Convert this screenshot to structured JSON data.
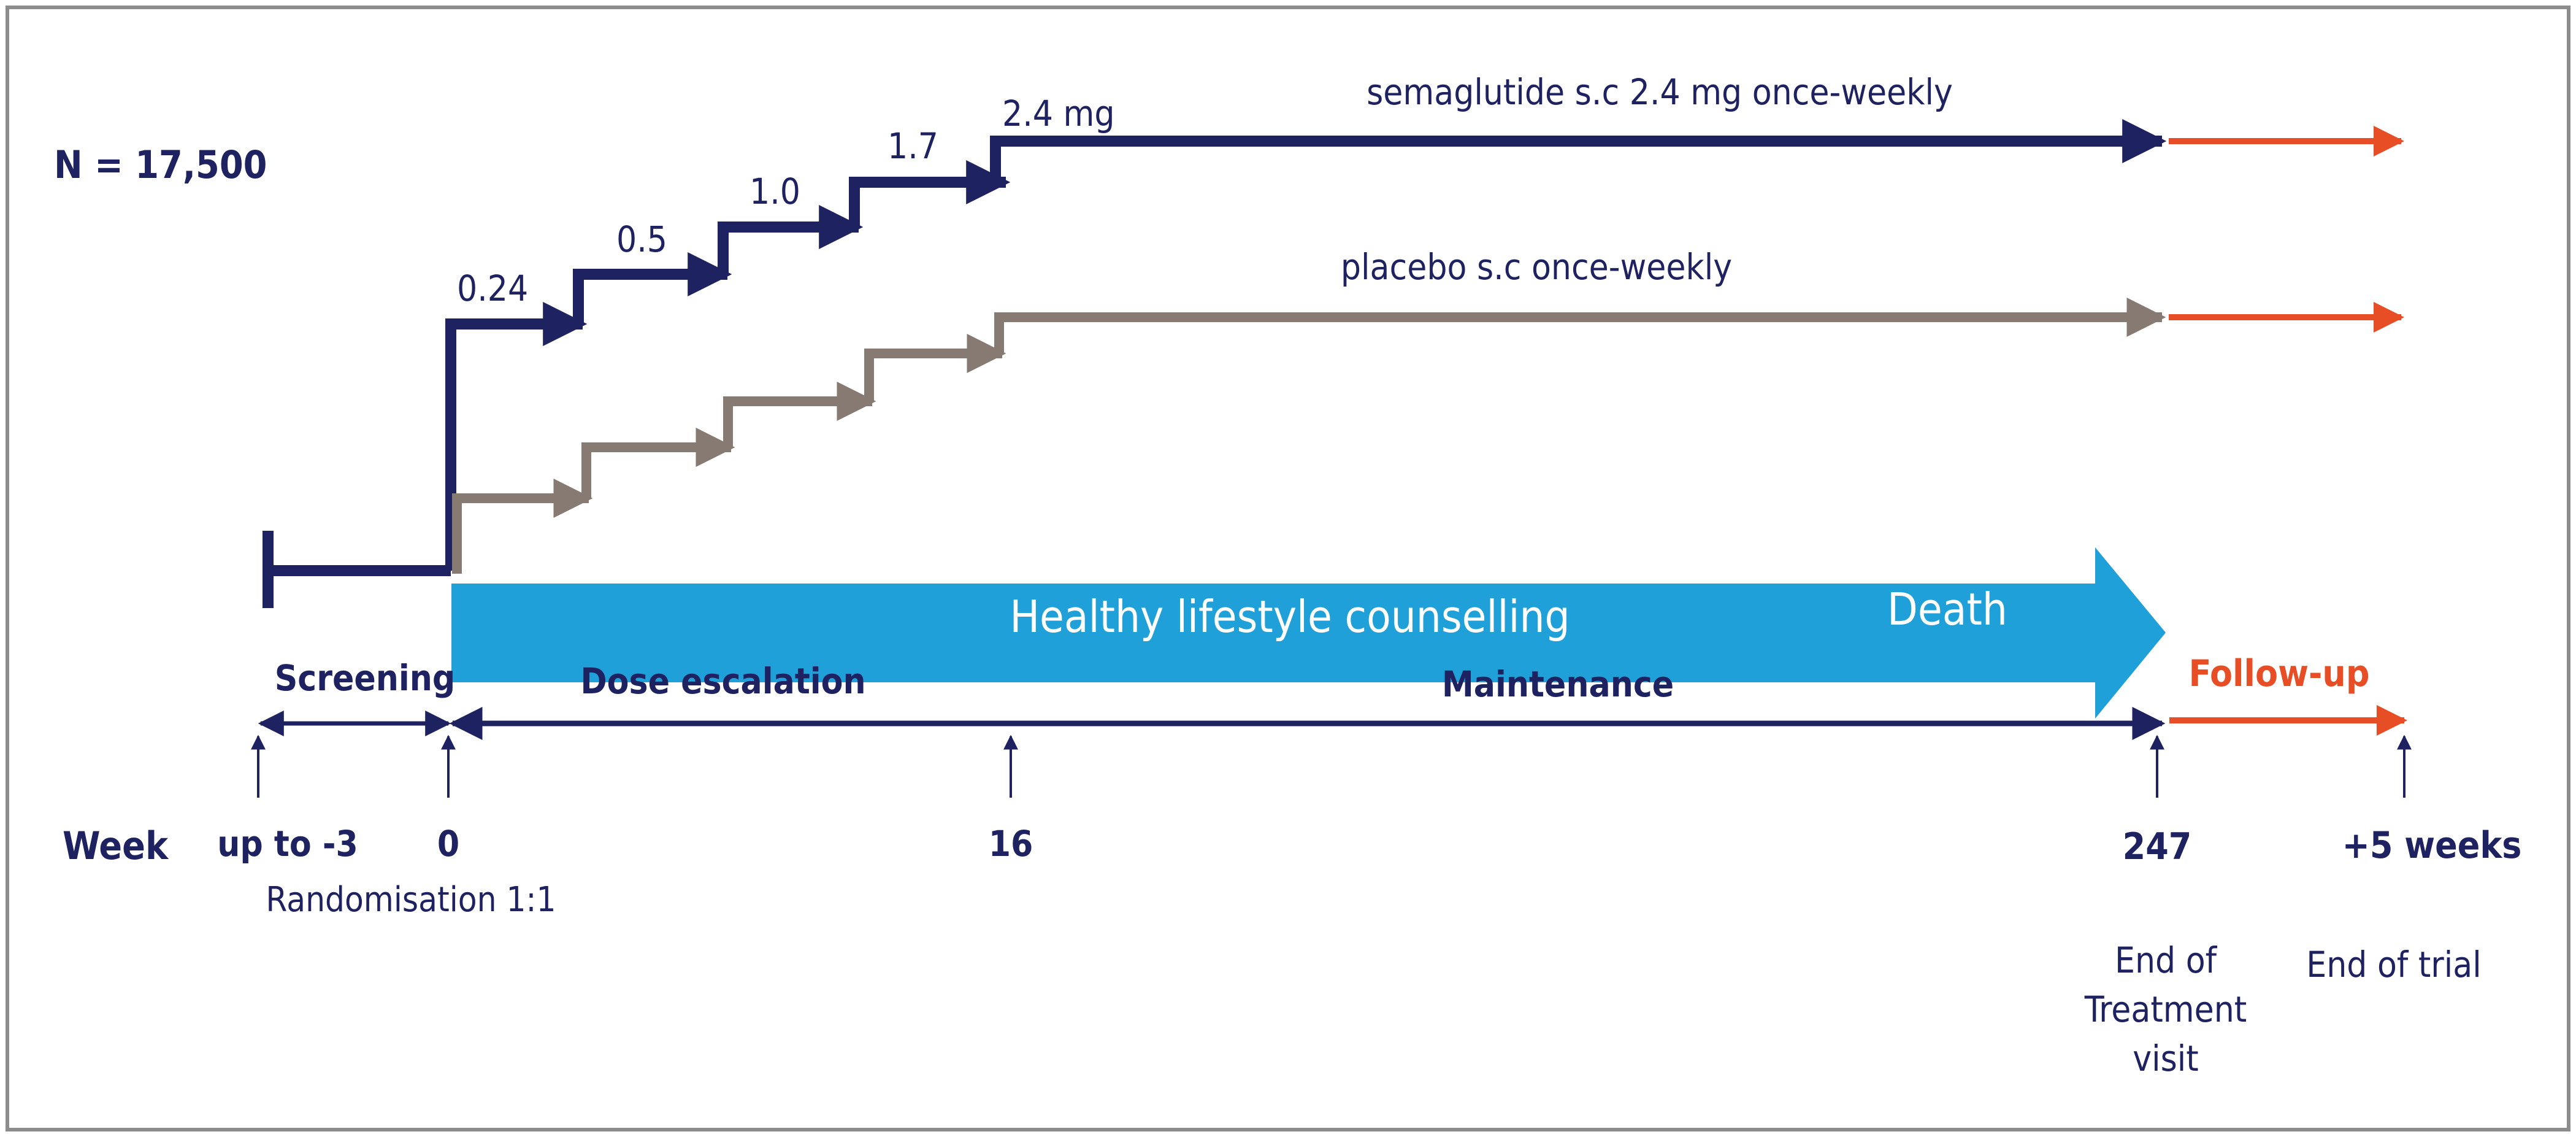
{
  "colors": {
    "navy": "#1f2260",
    "placebo_grey": "#867a72",
    "followup_orange": "#e84e25",
    "lifestyle_blue": "#1fa0d8"
  },
  "sample_size": "N = 17,500",
  "arms": {
    "semaglutide": {
      "label": "semaglutide s.c  2.4 mg once-weekly",
      "doses": [
        "0.24",
        "0.5",
        "1.0",
        "1.7",
        "2.4 mg"
      ]
    },
    "placebo": {
      "label": "placebo s.c  once-weekly"
    }
  },
  "band": {
    "label": "Healthy lifestyle counselling",
    "end_label": "Death"
  },
  "phases": {
    "screening": "Screening",
    "dose_escalation": "Dose escalation",
    "maintenance": "Maintenance",
    "follow_up": "Follow-up"
  },
  "timeline": {
    "week_label": "Week",
    "points": [
      "up to -3",
      "0",
      "16",
      "247",
      "+5 weeks"
    ],
    "randomisation": "Randomisation 1:1",
    "end_of_treatment": [
      "End of",
      "Treatment",
      "visit"
    ],
    "end_of_trial": "End of trial"
  }
}
